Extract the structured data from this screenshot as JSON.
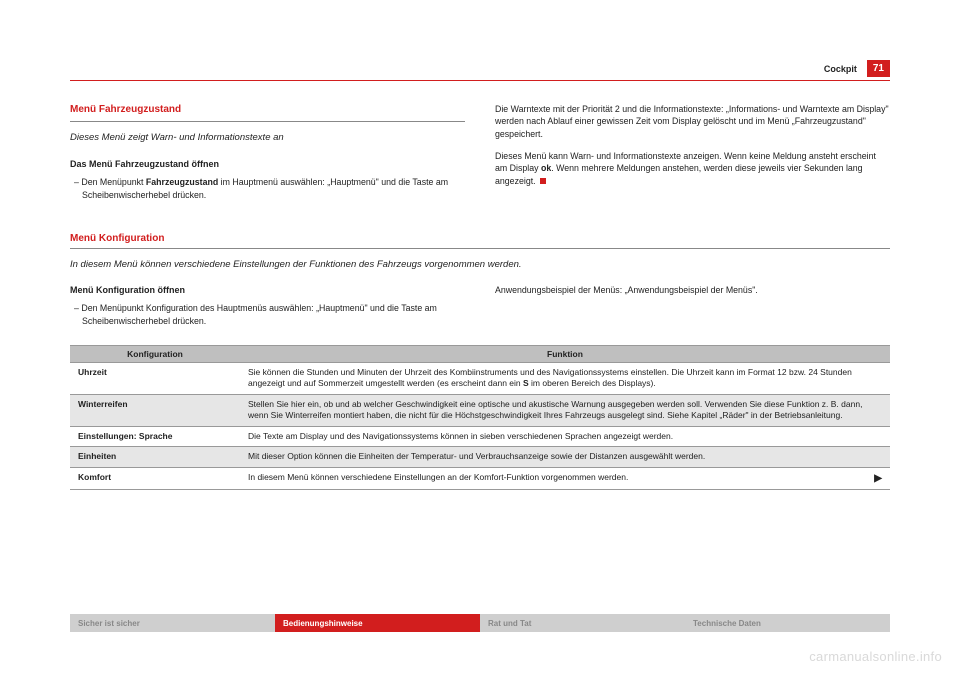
{
  "header": {
    "section": "Cockpit",
    "page_number": "71"
  },
  "colors": {
    "accent": "#d21e1e",
    "gray_bg": "#cfcfcf",
    "gray_text": "#888888",
    "table_header_bg": "#bfbfbf",
    "table_alt_bg": "#e6e6e6"
  },
  "sec1": {
    "heading": "Menü Fahrzeugzustand",
    "intro": "Dieses Menü zeigt Warn- und Informationstexte an",
    "sub_heading": "Das Menü Fahrzeugzustand öffnen",
    "step1_prefix": "– Den Menüpunkt ",
    "step1_bold": "Fahrzeugzustand",
    "step1_suffix": " im Hauptmenü auswählen: „Hauptmenü\" und die Taste am Scheibenwischerhebel drücken.",
    "right_p1": "Die Warntexte mit der Priorität 2 und die Informationstexte: „Informations- und Warntexte am Display\" werden nach Ablauf einer gewissen Zeit vom Display gelöscht und im Menü „Fahrzeugzustand\" gespeichert.",
    "right_p2a": "Dieses Menü kann Warn- und Informationstexte anzeigen. Wenn keine Meldung ansteht erscheint am Display ",
    "right_p2_bold": "ok",
    "right_p2b": ". Wenn mehrere Meldungen anstehen, werden diese jeweils vier Sekunden lang angezeigt."
  },
  "sec2": {
    "heading": "Menü Konfiguration",
    "intro": "In diesem Menü können verschiedene Einstellungen der Funktionen des Fahrzeugs vorgenommen werden.",
    "sub_heading": "Menü Konfiguration öffnen",
    "step1": "– Den Menüpunkt Konfiguration des Hauptmenüs auswählen: „Hauptmenü\" und die Taste am Scheibenwischerhebel drücken.",
    "right_p1": "Anwendungsbeispiel der Menüs: „Anwendungsbeispiel der Menüs\"."
  },
  "table": {
    "col1": "Konfiguration",
    "col2": "Funktion",
    "rows": [
      {
        "k": "Uhrzeit",
        "v_a": "Sie können die Stunden und Minuten der Uhrzeit des Kombiinstruments und des Navigationssystems einstellen. Die Uhrzeit kann im Format 12 bzw. 24 Stunden angezeigt und auf Sommerzeit umgestellt werden (es erscheint dann ein ",
        "v_bold": "S",
        "v_b": " im oberen Bereich des Displays)."
      },
      {
        "k": "Winterreifen",
        "v": "Stellen Sie hier ein, ob und ab welcher Geschwindigkeit eine optische und akustische Warnung ausgegeben werden soll. Verwenden Sie diese Funktion z. B. dann, wenn Sie Winterreifen montiert haben, die nicht für die Höchstgeschwindigkeit Ihres Fahrzeugs ausgelegt sind. Siehe Kapitel „Räder\" in der Betriebsanleitung."
      },
      {
        "k": "Einstellungen: Sprache",
        "v": "Die Texte am Display und des Navigationssystems können in sieben verschiedenen Sprachen angezeigt werden."
      },
      {
        "k": "Einheiten",
        "v": "Mit dieser Option können die Einheiten der Temperatur- und Verbrauchsanzeige sowie der Distanzen ausgewählt werden."
      },
      {
        "k": "Komfort",
        "v": "In diesem Menü können verschiedene Einstellungen an der Komfort-Funktion vorgenommen werden."
      }
    ],
    "continue": "▶"
  },
  "footer": {
    "tabs": [
      "Sicher ist sicher",
      "Bedienungshinweise",
      "Rat und Tat",
      "Technische Daten"
    ],
    "active_index": 1
  },
  "watermark": "carmanualsonline.info"
}
